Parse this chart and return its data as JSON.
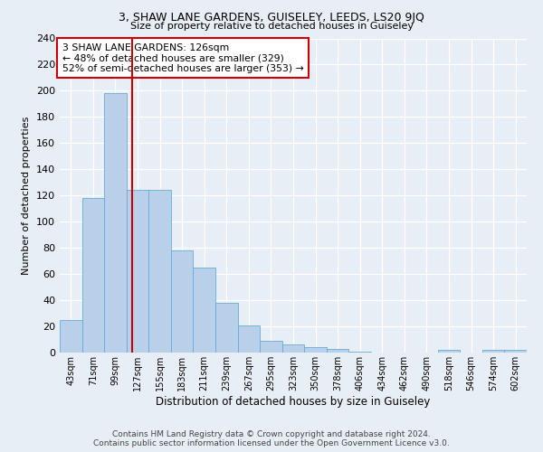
{
  "title1": "3, SHAW LANE GARDENS, GUISELEY, LEEDS, LS20 9JQ",
  "title2": "Size of property relative to detached houses in Guiseley",
  "xlabel": "Distribution of detached houses by size in Guiseley",
  "ylabel": "Number of detached properties",
  "categories": [
    "43sqm",
    "71sqm",
    "99sqm",
    "127sqm",
    "155sqm",
    "183sqm",
    "211sqm",
    "239sqm",
    "267sqm",
    "295sqm",
    "323sqm",
    "350sqm",
    "378sqm",
    "406sqm",
    "434sqm",
    "462sqm",
    "490sqm",
    "518sqm",
    "546sqm",
    "574sqm",
    "602sqm"
  ],
  "values": [
    25,
    118,
    198,
    124,
    124,
    78,
    65,
    38,
    21,
    9,
    6,
    4,
    3,
    1,
    0,
    0,
    0,
    2,
    0,
    2,
    2
  ],
  "bar_color": "#b8d0ea",
  "bar_edge_color": "#6aaad4",
  "ylim": [
    0,
    240
  ],
  "yticks": [
    0,
    20,
    40,
    60,
    80,
    100,
    120,
    140,
    160,
    180,
    200,
    220,
    240
  ],
  "vline_x_index": 2.75,
  "vline_color": "#cc0000",
  "annotation_text": "3 SHAW LANE GARDENS: 126sqm\n← 48% of detached houses are smaller (329)\n52% of semi-detached houses are larger (353) →",
  "annotation_box_color": "#ffffff",
  "annotation_box_edge_color": "#cc0000",
  "footer1": "Contains HM Land Registry data © Crown copyright and database right 2024.",
  "footer2": "Contains public sector information licensed under the Open Government Licence v3.0.",
  "bg_color": "#e8eef5",
  "plot_bg_color": "#e8eef5"
}
